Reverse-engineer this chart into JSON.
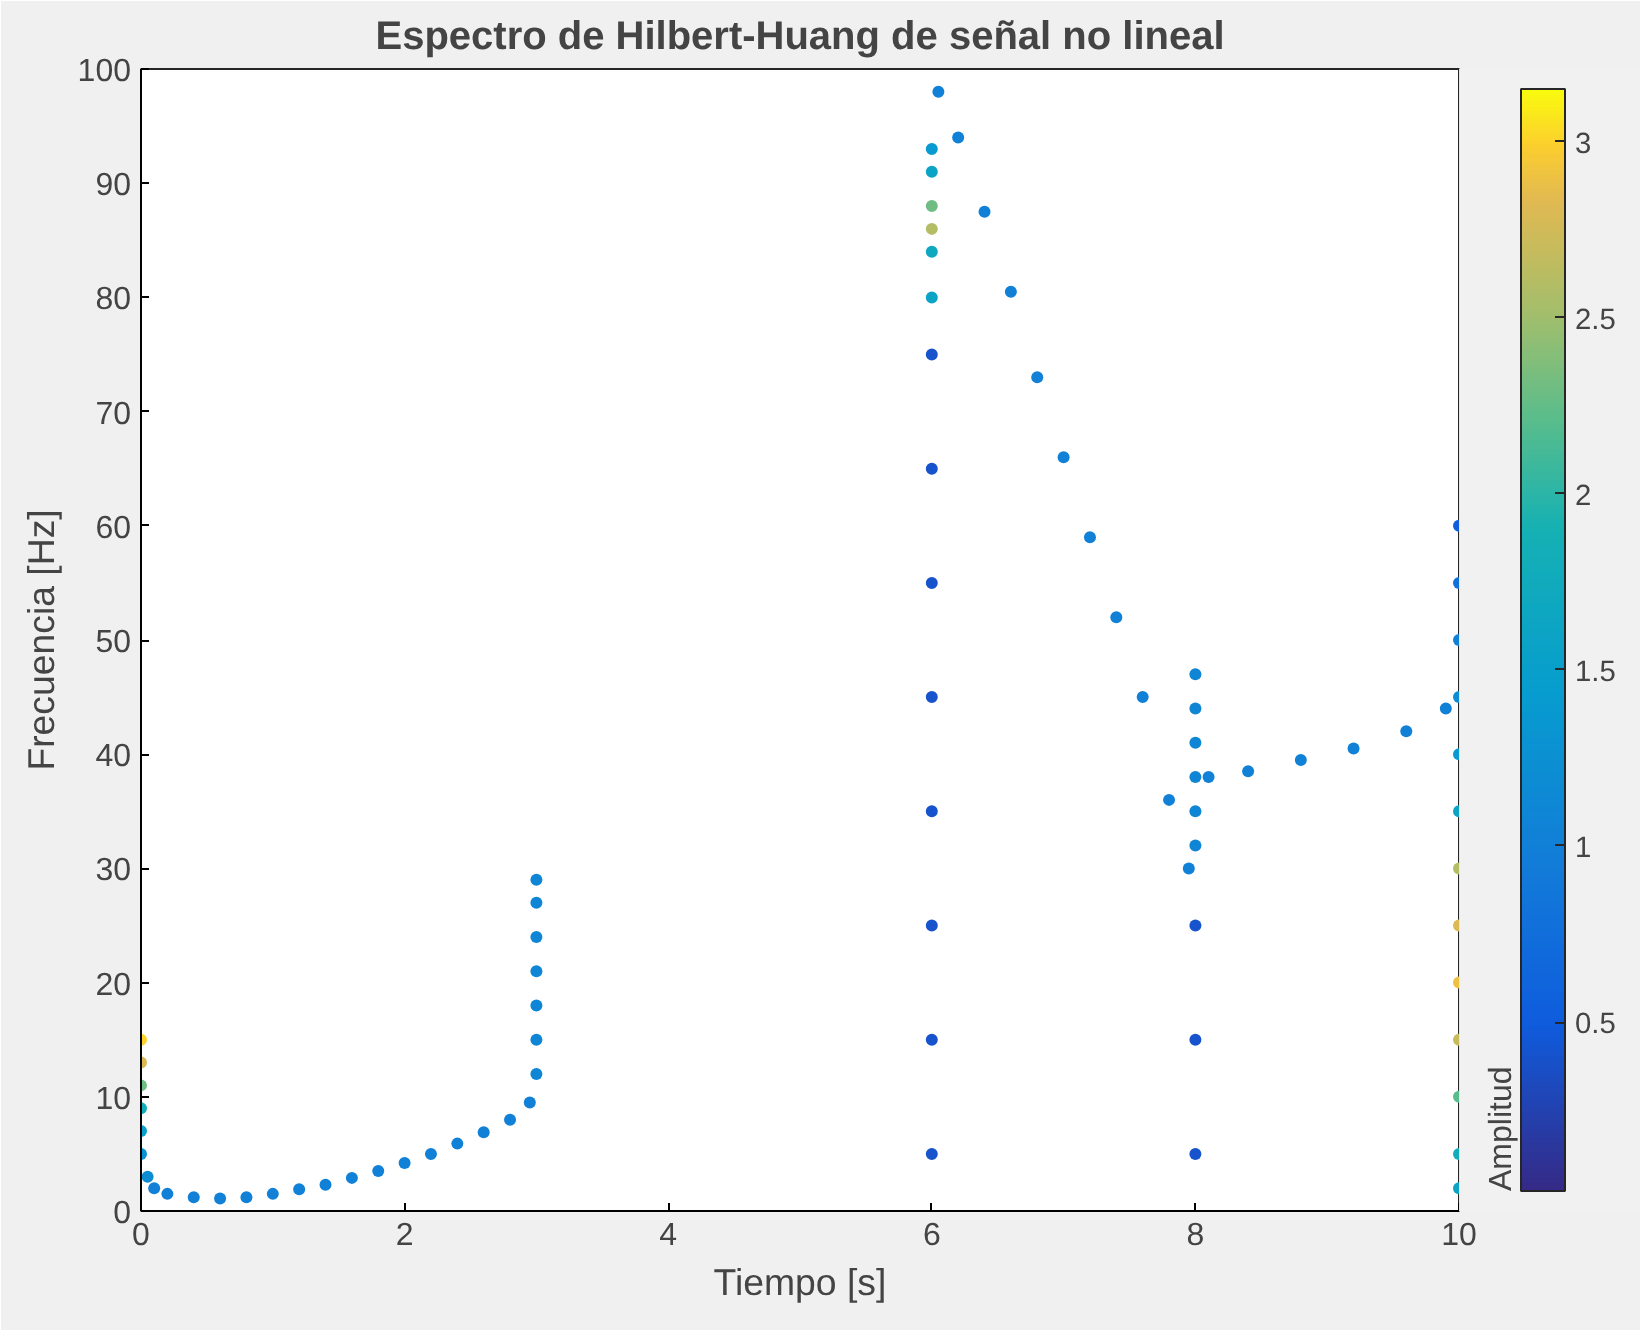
{
  "chart_data": {
    "type": "scatter",
    "title": "Espectro de Hilbert-Huang de señal no lineal",
    "xlabel": "Tiempo [s]",
    "ylabel": "Frecuencia [Hz]",
    "clabel": "Amplitud",
    "xlim": [
      0,
      10
    ],
    "ylim": [
      0,
      100
    ],
    "xticks": [
      0,
      2,
      4,
      6,
      8,
      10
    ],
    "yticks": [
      0,
      10,
      20,
      30,
      40,
      50,
      60,
      70,
      80,
      90,
      100
    ],
    "clim": [
      0.02,
      3.15
    ],
    "cticks": [
      0.5,
      1,
      1.5,
      2,
      2.5,
      3
    ],
    "grid": false,
    "marker": "circle",
    "x": [
      0.05,
      0.1,
      0.2,
      0.4,
      0.6,
      0.8,
      1.0,
      1.2,
      1.4,
      1.6,
      1.8,
      2.0,
      2.2,
      2.4,
      2.6,
      2.8,
      2.95,
      0,
      0,
      0,
      0,
      0,
      0,
      3,
      3,
      3,
      3,
      3,
      3,
      3,
      6,
      6,
      6,
      6,
      6,
      6,
      6,
      6,
      6,
      6,
      6,
      6,
      6,
      6,
      6.05,
      6.2,
      6.4,
      6.6,
      6.8,
      7.0,
      7.2,
      7.4,
      7.6,
      7.8,
      7.95,
      8,
      8,
      8,
      8,
      8,
      8,
      8,
      8,
      8,
      8.1,
      8.4,
      8.8,
      9.2,
      9.6,
      9.9,
      10,
      10,
      10,
      10,
      10,
      10,
      10,
      10,
      10,
      10,
      10,
      10,
      10
    ],
    "values": [
      3,
      2,
      1.5,
      1.2,
      1.1,
      1.2,
      1.5,
      1.9,
      2.3,
      2.9,
      3.5,
      4.2,
      5,
      5.9,
      6.9,
      8,
      9.5,
      15,
      13,
      11,
      9,
      7,
      5,
      12,
      15,
      18,
      21,
      24,
      27,
      29,
      5,
      15,
      25,
      35,
      45,
      55,
      65,
      75,
      80,
      84,
      86,
      88,
      91,
      93,
      98,
      94,
      87.5,
      80.5,
      73,
      66,
      59,
      52,
      45,
      36,
      30,
      32,
      35,
      38,
      41,
      44,
      47,
      5,
      15,
      25,
      38,
      38.5,
      39.5,
      40.5,
      42,
      44,
      35,
      40,
      45,
      50,
      55,
      60,
      30,
      25,
      20,
      15,
      10,
      5,
      2
    ],
    "cvalues": [
      1.2,
      1,
      1,
      1,
      1,
      1,
      1,
      1,
      1,
      1,
      1,
      1,
      1,
      1,
      1,
      1,
      1,
      3,
      2.8,
      2.3,
      1.8,
      1.5,
      1.3,
      1.1,
      1.1,
      1.1,
      1.1,
      1.1,
      1.1,
      1.1,
      0.4,
      0.4,
      0.4,
      0.4,
      0.4,
      0.4,
      0.4,
      0.4,
      1.6,
      1.7,
      2.6,
      2.3,
      1.6,
      1.4,
      1,
      1,
      1,
      1,
      1,
      1,
      1,
      1,
      1,
      1,
      1,
      1.1,
      1.1,
      1.1,
      1.1,
      1.1,
      1.1,
      0.4,
      0.4,
      0.4,
      1,
      1,
      1,
      1,
      1,
      1,
      1.6,
      1.4,
      1.2,
      1,
      0.8,
      0.5,
      2.6,
      2.8,
      2.9,
      2.7,
      2.2,
      1.8,
      1.6
    ]
  }
}
